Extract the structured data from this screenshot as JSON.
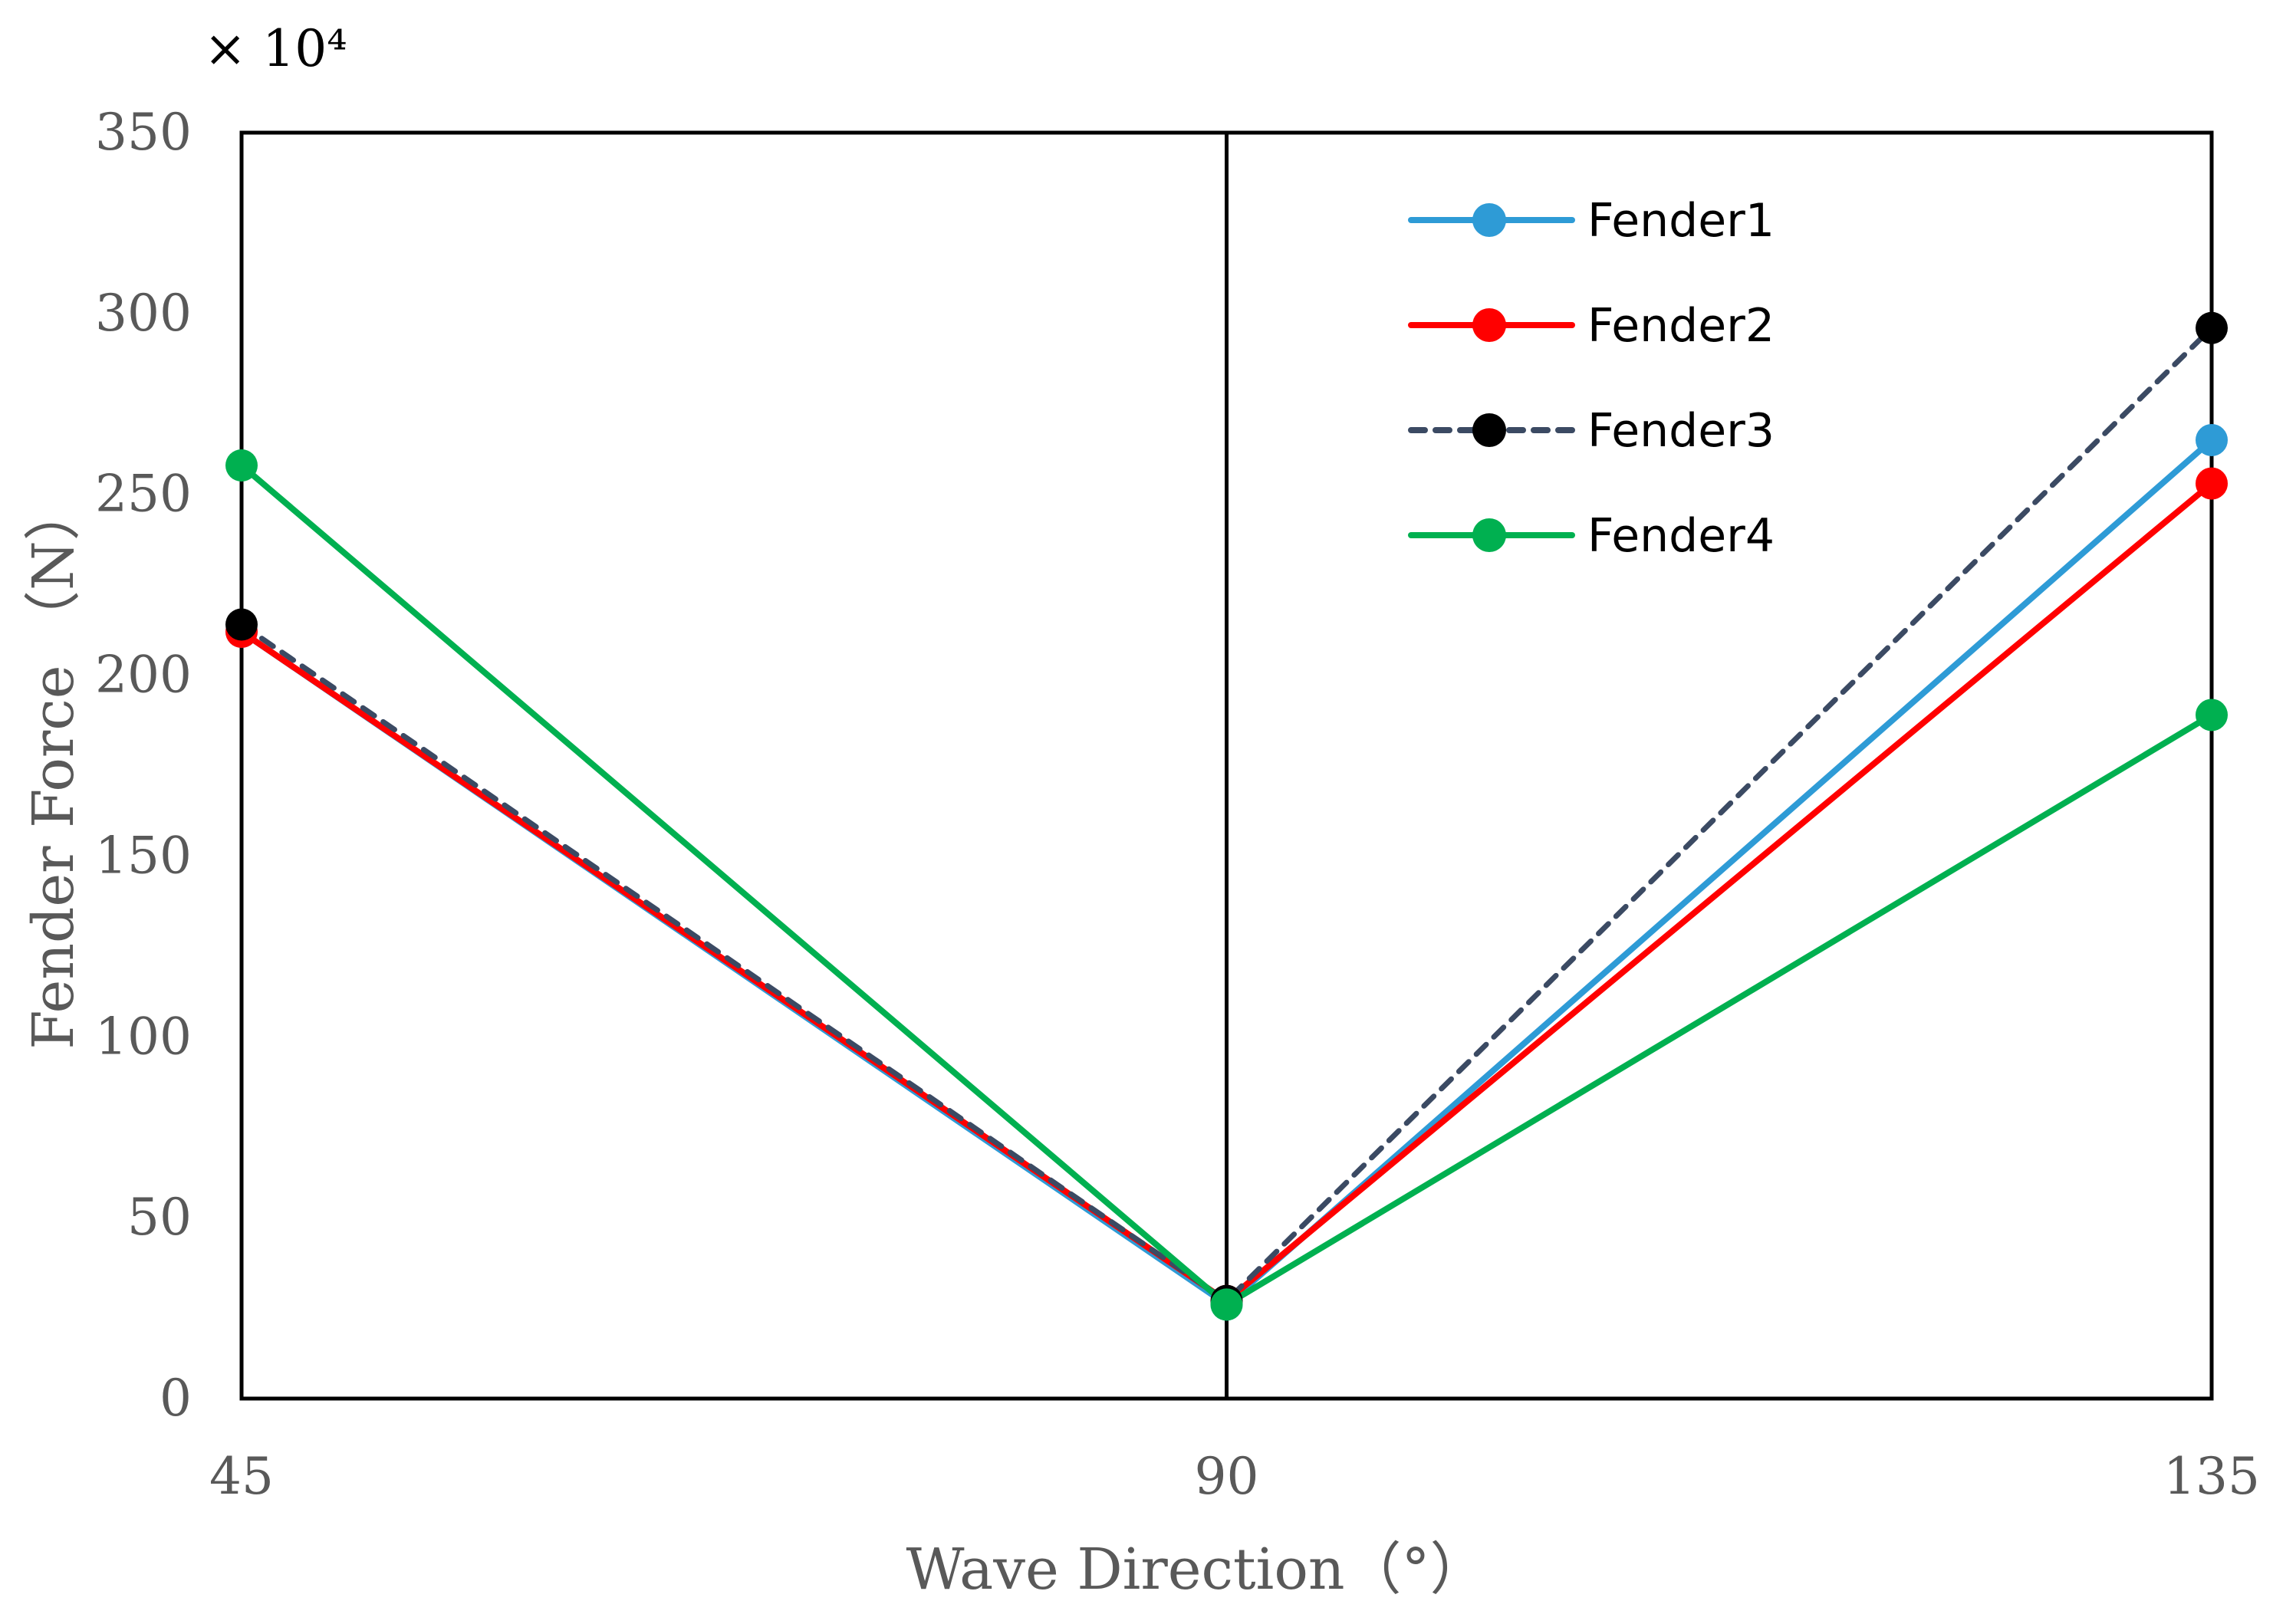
{
  "chart_data": {
    "type": "line",
    "multiplier_label": "× 10⁴",
    "xlabel": "Wave Direction（°）",
    "ylabel": "Fender Force （N）",
    "x": [
      45,
      90,
      135
    ],
    "x_tick_labels": [
      "45",
      "90",
      "135"
    ],
    "y_ticks": [
      0,
      50,
      100,
      150,
      200,
      250,
      300,
      350
    ],
    "y_tick_labels": [
      "0",
      "50",
      "100",
      "150",
      "200",
      "250",
      "300",
      "350"
    ],
    "ylim": [
      0,
      350
    ],
    "grid": false,
    "vertical_reference_line_x": 90,
    "legend_position": "top-right",
    "series": [
      {
        "name": "Fender1",
        "values": [
          212,
          26,
          265
        ],
        "color": "#2e9bd6",
        "dashed": false
      },
      {
        "name": "Fender2",
        "values": [
          212,
          27,
          253
        ],
        "color": "#ff0000",
        "dashed": false
      },
      {
        "name": "Fender3",
        "values": [
          214,
          27,
          296
        ],
        "color": "#000000",
        "line_color": "#3b4a63",
        "dashed": true
      },
      {
        "name": "Fender4",
        "values": [
          258,
          26,
          189
        ],
        "color": "#00b050",
        "dashed": false
      }
    ]
  }
}
